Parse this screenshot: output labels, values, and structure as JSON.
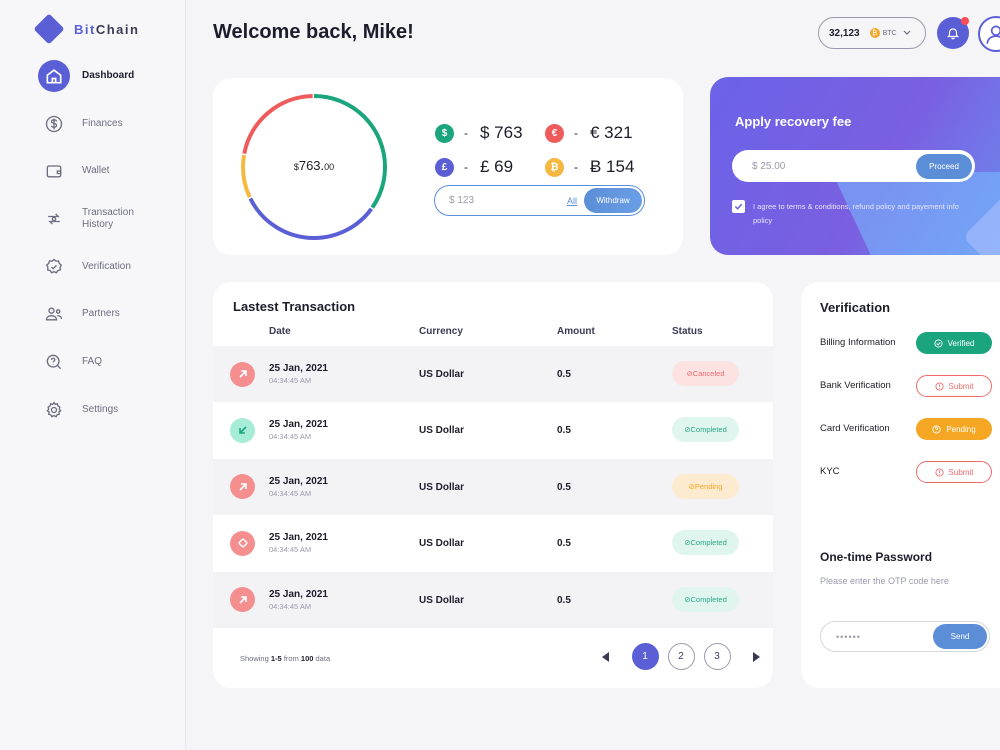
{
  "brand": {
    "name_prefix": "Bit",
    "name_suffix": "Chain"
  },
  "sidebar": {
    "items": [
      {
        "label": "Dashboard",
        "icon": "home-icon",
        "active": true
      },
      {
        "label": "Finances",
        "icon": "dollar-circle-icon"
      },
      {
        "label": "Wallet",
        "icon": "wallet-icon"
      },
      {
        "label": "Transaction History",
        "icon": "transaction-history-icon"
      },
      {
        "label": "Verification",
        "icon": "verification-badge-icon"
      },
      {
        "label": "Partners",
        "icon": "partners-icon"
      },
      {
        "label": "FAQ",
        "icon": "faq-icon"
      },
      {
        "label": "Settings",
        "icon": "gear-icon"
      }
    ]
  },
  "header": {
    "welcome": "Welcome back, Mike!",
    "btc_amount": "32,123",
    "btc_currency": "BTC",
    "btc_coin_symbol": "₿"
  },
  "balance": {
    "currency_symbol": "$",
    "main": "763.",
    "cents": "00",
    "donut_segments": [
      {
        "color": "#1aa57f",
        "fraction": 0.35
      },
      {
        "color": "#5b5fd6",
        "fraction": 0.33
      },
      {
        "color": "#f5b942",
        "fraction": 0.1
      },
      {
        "color": "#ef5b5b",
        "fraction": 0.22
      }
    ],
    "currencies": [
      {
        "symbol": "$",
        "color": "#1aa57f",
        "dash": "-",
        "value": "$ 763"
      },
      {
        "symbol": "€",
        "color": "#ef5b5b",
        "dash": "-",
        "value": "€ 321"
      },
      {
        "symbol": "£",
        "color": "#5b5fd6",
        "dash": "-",
        "value": "£ 69"
      },
      {
        "symbol": "₿",
        "color": "#f5b942",
        "dash": "-",
        "value": "Ƀ 154"
      }
    ],
    "withdraw": {
      "placeholder": "$ 123",
      "all_label": "All",
      "button": "Withdraw"
    }
  },
  "recovery": {
    "title": "Apply recovery fee",
    "input_placeholder": "$ 25.00",
    "button": "Proceed",
    "terms": "I agree to terms & conditions, refund policy and payement info policy",
    "checked": true
  },
  "transactions": {
    "title": "Lastest Transaction",
    "columns": {
      "date": "Date",
      "currency": "Currency",
      "amount": "Amount",
      "status": "Status"
    },
    "rows": [
      {
        "type": "sent",
        "date": "25 Jan, 2021",
        "time": "04:34:45 AM",
        "currency": "US Dollar",
        "amount": "0.5",
        "status": "Canceled",
        "status_kind": "canceled"
      },
      {
        "type": "received",
        "date": "25 Jan, 2021",
        "time": "04:34:45 AM",
        "currency": "US Dollar",
        "amount": "0.5",
        "status": "Completed",
        "status_kind": "completed"
      },
      {
        "type": "sent",
        "date": "25 Jan, 2021",
        "time": "04:34:45 AM",
        "currency": "US Dollar",
        "amount": "0.5",
        "status": "Pending",
        "status_kind": "pending"
      },
      {
        "type": "exchange",
        "date": "25 Jan, 2021",
        "time": "04:34:45 AM",
        "currency": "US Dollar",
        "amount": "0.5",
        "status": "Completed",
        "status_kind": "completed"
      },
      {
        "type": "sent",
        "date": "25 Jan, 2021",
        "time": "04:34:45 AM",
        "currency": "US Dollar",
        "amount": "0.5",
        "status": "Completed",
        "status_kind": "completed"
      }
    ],
    "footer": {
      "prefix": "Showing",
      "range": "1-5",
      "from": "from",
      "total": "100",
      "suffix": "data"
    },
    "pages": [
      "1",
      "2",
      "3"
    ],
    "current_page": "1"
  },
  "verification": {
    "title": "Verification",
    "items": [
      {
        "label": "Billing Information",
        "button": "Verified",
        "kind": "verified"
      },
      {
        "label": "Bank Verification",
        "button": "Submit",
        "kind": "submit"
      },
      {
        "label": "Card Verification",
        "button": "Pending",
        "kind": "pending"
      },
      {
        "label": "KYC",
        "button": "Submit",
        "kind": "submit"
      }
    ]
  },
  "otp": {
    "title": "One-time Password",
    "description": "Please enter the OTP code here",
    "placeholder": "••••••",
    "button": "Send"
  },
  "colors": {
    "accent": "#5b5fd6",
    "blue": "#5b8ed6",
    "green": "#1aa57f",
    "red": "#ef5b5b",
    "orange": "#f5a623"
  }
}
